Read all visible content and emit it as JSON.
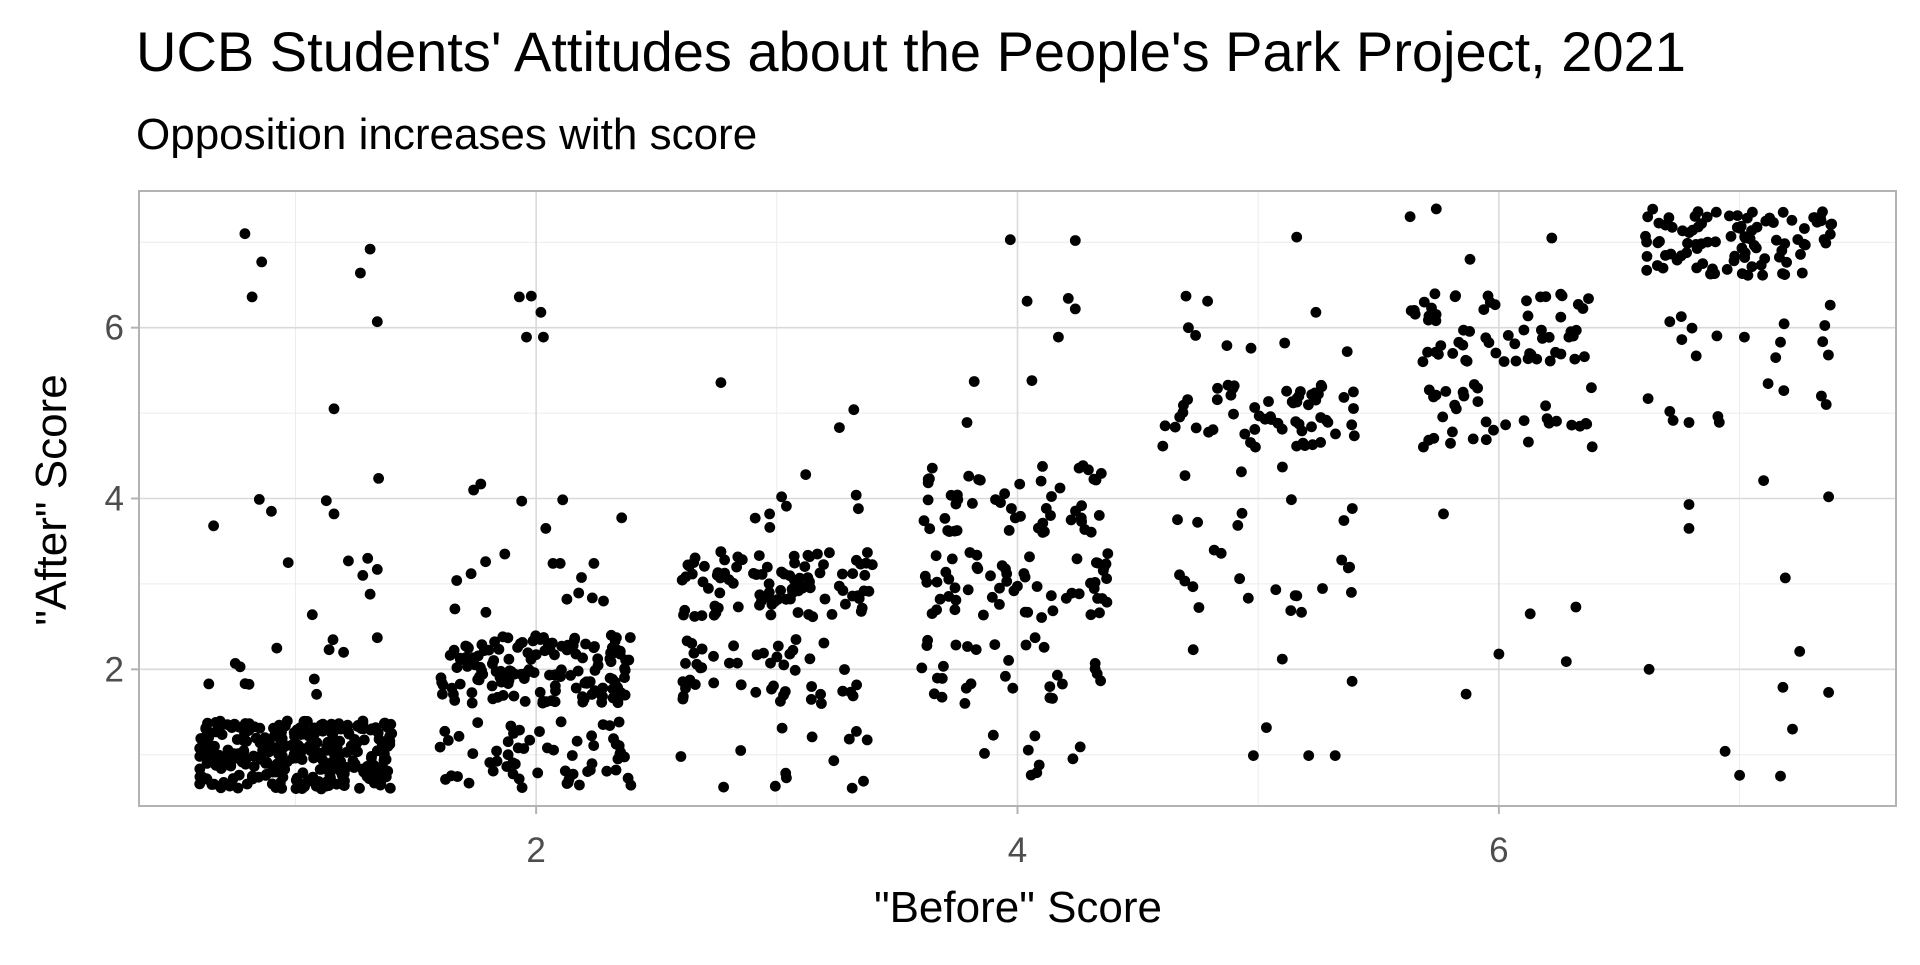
{
  "chart_data": {
    "type": "scatter",
    "title": "UCB Students' Attitudes about the People's Park Project, 2021",
    "subtitle": "Opposition increases with score",
    "xlabel": "\"Before\" Score",
    "ylabel": "\"After\" Score",
    "xlim": [
      0.35,
      7.65
    ],
    "ylim": [
      0.4,
      7.6
    ],
    "x_ticks": [
      {
        "value": 2,
        "label": "2"
      },
      {
        "value": 4,
        "label": "4"
      },
      {
        "value": 6,
        "label": "6"
      }
    ],
    "y_ticks": [
      {
        "value": 2,
        "label": "2"
      },
      {
        "value": 4,
        "label": "4"
      },
      {
        "value": 6,
        "label": "6"
      }
    ],
    "x_minor": [
      1,
      3,
      5,
      7
    ],
    "y_minor": [
      1,
      3,
      5,
      7
    ],
    "grid": true,
    "theme": "light",
    "point_color": "#000000",
    "jitter": {
      "x": 0.4,
      "y": 0.4
    },
    "groups": [
      {
        "before": 1,
        "after_counts": [
          {
            "after": 1,
            "count": 300
          },
          {
            "after": 2,
            "count": 12
          },
          {
            "after": 3,
            "count": 7
          },
          {
            "after": 4,
            "count": 6
          },
          {
            "after": 5,
            "count": 1
          },
          {
            "after": 6,
            "count": 2
          },
          {
            "after": 7,
            "count": 4
          }
        ],
        "explicit_points": [
          [
            0.66,
            3.68
          ],
          [
            0.75,
            2.07
          ],
          [
            0.77,
            2.03
          ],
          [
            0.64,
            1.83
          ],
          [
            1.07,
            2.64
          ],
          [
            1.14,
            2.23
          ],
          [
            1.2,
            2.2
          ],
          [
            0.97,
            3.25
          ],
          [
            1.22,
            3.27
          ],
          [
            1.3,
            3.3
          ],
          [
            1.34,
            3.17
          ],
          [
            0.85,
            3.99
          ],
          [
            0.9,
            3.85
          ],
          [
            1.16,
            3.82
          ],
          [
            1.16,
            5.05
          ],
          [
            0.82,
            6.36
          ],
          [
            1.34,
            6.07
          ],
          [
            0.79,
            7.1
          ],
          [
            0.86,
            6.77
          ],
          [
            1.27,
            6.64
          ],
          [
            1.31,
            6.92
          ],
          [
            1.34,
            2.37
          ],
          [
            1.31,
            2.88
          ],
          [
            1.28,
            3.1
          ]
        ]
      },
      {
        "before": 2,
        "after_counts": [
          {
            "after": 1,
            "count": 60
          },
          {
            "after": 2,
            "count": 150
          },
          {
            "after": 3,
            "count": 14
          },
          {
            "after": 4,
            "count": 6
          },
          {
            "after": 5,
            "count": 0
          },
          {
            "after": 6,
            "count": 4
          },
          {
            "after": 7,
            "count": 0
          }
        ],
        "explicit_points": [
          [
            1.93,
            6.36
          ],
          [
            1.98,
            6.37
          ],
          [
            2.02,
            6.18
          ],
          [
            1.96,
            5.89
          ],
          [
            2.03,
            5.89
          ],
          [
            1.74,
            4.1
          ],
          [
            1.77,
            4.17
          ],
          [
            1.94,
            3.97
          ],
          [
            2.04,
            3.65
          ],
          [
            2.07,
            3.24
          ],
          [
            2.1,
            3.24
          ],
          [
            2.24,
            3.24
          ],
          [
            1.73,
            3.12
          ],
          [
            1.79,
            3.26
          ],
          [
            1.87,
            3.35
          ],
          [
            1.67,
            3.04
          ],
          [
            2.28,
            2.8
          ]
        ]
      },
      {
        "before": 3,
        "after_counts": [
          {
            "after": 1,
            "count": 14
          },
          {
            "after": 2,
            "count": 48
          },
          {
            "after": 3,
            "count": 95
          },
          {
            "after": 4,
            "count": 8
          },
          {
            "after": 5,
            "count": 3
          },
          {
            "after": 6,
            "count": 0
          },
          {
            "after": 7,
            "count": 0
          }
        ],
        "explicit_points": [
          [
            3.26,
            4.83
          ],
          [
            3.32,
            5.04
          ],
          [
            3.12,
            4.28
          ],
          [
            3.33,
            4.04
          ],
          [
            2.91,
            3.77
          ],
          [
            2.97,
            3.82
          ],
          [
            3.04,
            3.91
          ],
          [
            3.02,
            4.02
          ],
          [
            3.04,
            0.73
          ],
          [
            3.36,
            0.69
          ],
          [
            2.85,
            1.05
          ]
        ]
      },
      {
        "before": 4,
        "after_counts": [
          {
            "after": 1,
            "count": 9
          },
          {
            "after": 2,
            "count": 30
          },
          {
            "after": 3,
            "count": 58
          },
          {
            "after": 4,
            "count": 52
          },
          {
            "after": 5,
            "count": 3
          },
          {
            "after": 6,
            "count": 4
          },
          {
            "after": 7,
            "count": 2
          }
        ],
        "explicit_points": [
          [
            3.97,
            7.03
          ],
          [
            4.24,
            7.02
          ],
          [
            4.04,
            6.31
          ],
          [
            4.24,
            6.22
          ],
          [
            4.17,
            5.89
          ],
          [
            3.82,
            5.37
          ],
          [
            4.06,
            5.38
          ],
          [
            3.79,
            4.89
          ],
          [
            4.08,
            0.79
          ],
          [
            4.09,
            0.88
          ]
        ]
      },
      {
        "before": 5,
        "after_counts": [
          {
            "after": 1,
            "count": 4
          },
          {
            "after": 2,
            "count": 3
          },
          {
            "after": 3,
            "count": 18
          },
          {
            "after": 4,
            "count": 10
          },
          {
            "after": 5,
            "count": 62
          },
          {
            "after": 6,
            "count": 8
          },
          {
            "after": 7,
            "count": 1
          }
        ],
        "explicit_points": [
          [
            5.16,
            7.06
          ],
          [
            4.7,
            6.37
          ],
          [
            4.79,
            6.31
          ],
          [
            5.24,
            6.18
          ],
          [
            4.71,
            6.0
          ],
          [
            4.74,
            5.91
          ],
          [
            4.87,
            5.79
          ],
          [
            4.97,
            5.76
          ],
          [
            5.11,
            5.82
          ],
          [
            5.37,
            5.72
          ],
          [
            4.98,
            0.99
          ],
          [
            5.21,
            0.99
          ],
          [
            5.32,
            0.99
          ],
          [
            5.1,
            2.12
          ],
          [
            5.39,
            1.86
          ],
          [
            4.73,
            2.23
          ]
        ]
      },
      {
        "before": 6,
        "after_counts": [
          {
            "after": 1,
            "count": 0
          },
          {
            "after": 2,
            "count": 3
          },
          {
            "after": 3,
            "count": 1
          },
          {
            "after": 4,
            "count": 1
          },
          {
            "after": 5,
            "count": 34
          },
          {
            "after": 6,
            "count": 62
          },
          {
            "after": 7,
            "count": 4
          }
        ],
        "explicit_points": [
          [
            5.74,
            7.39
          ],
          [
            5.88,
            6.8
          ],
          [
            6.22,
            7.05
          ],
          [
            5.77,
            3.82
          ],
          [
            6.0,
            2.18
          ],
          [
            6.13,
            2.65
          ],
          [
            6.32,
            2.73
          ],
          [
            6.28,
            2.09
          ]
        ]
      },
      {
        "before": 7,
        "after_counts": [
          {
            "after": 1,
            "count": 4
          },
          {
            "after": 2,
            "count": 4
          },
          {
            "after": 3,
            "count": 1
          },
          {
            "after": 4,
            "count": 4
          },
          {
            "after": 5,
            "count": 10
          },
          {
            "after": 6,
            "count": 14
          },
          {
            "after": 7,
            "count": 98
          }
        ],
        "explicit_points": [
          [
            6.94,
            1.04
          ],
          [
            7.0,
            0.76
          ],
          [
            7.17,
            0.75
          ],
          [
            7.22,
            1.3
          ],
          [
            7.18,
            1.79
          ],
          [
            7.37,
            1.73
          ],
          [
            7.25,
            2.21
          ],
          [
            7.19,
            3.07
          ],
          [
            6.79,
            3.93
          ],
          [
            6.79,
            3.65
          ],
          [
            7.1,
            4.21
          ],
          [
            7.37,
            4.02
          ],
          [
            6.91,
            4.96
          ],
          [
            6.79,
            4.89
          ],
          [
            6.62,
            5.17
          ],
          [
            6.71,
            5.02
          ],
          [
            7.34,
            5.2
          ],
          [
            7.36,
            5.1
          ],
          [
            7.02,
            5.89
          ],
          [
            7.17,
            5.83
          ],
          [
            7.15,
            5.65
          ],
          [
            6.71,
            6.07
          ],
          [
            6.76,
            5.86
          ],
          [
            6.82,
            5.67
          ]
        ]
      }
    ]
  }
}
